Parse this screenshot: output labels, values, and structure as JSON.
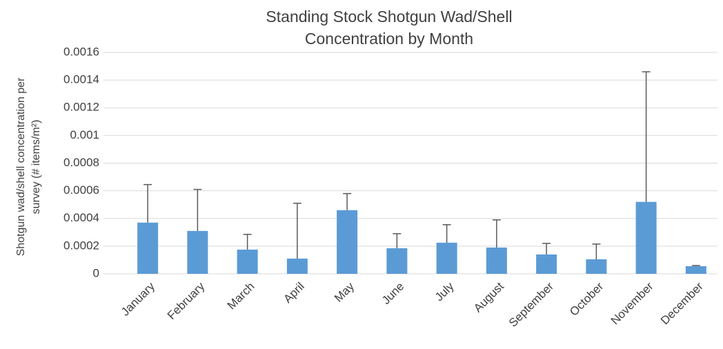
{
  "chart_data": {
    "type": "bar",
    "title": "Standing Stock Shotgun Wad/Shell Concentration by Month",
    "y_label": "Shotgun wad/shell concentration per survey (# items/m²)",
    "categories": [
      "January",
      "February",
      "March",
      "April",
      "May",
      "June",
      "July",
      "August",
      "September",
      "October",
      "November",
      "December"
    ],
    "values": [
      0.00037,
      0.00031,
      0.000175,
      0.00011,
      0.00046,
      0.000185,
      0.000225,
      0.00019,
      0.00014,
      0.000105,
      0.00052,
      5.5e-05
    ],
    "errors": [
      0.000275,
      0.0003,
      0.00011,
      0.0004,
      0.00012,
      0.000105,
      0.00013,
      0.0002,
      8e-05,
      0.00011,
      0.00094,
      5e-06
    ],
    "color": "#5b9bd5",
    "error_color": "#595959",
    "ylim": [
      0,
      0.0016
    ],
    "yticks": [
      0,
      0.0002,
      0.0004,
      0.0006,
      0.0008,
      0.001,
      0.0012,
      0.0014,
      0.0016
    ],
    "grid": true
  }
}
